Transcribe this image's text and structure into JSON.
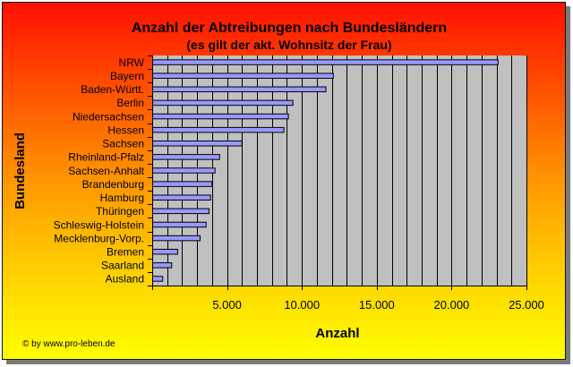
{
  "chart_data": {
    "type": "bar",
    "orientation": "horizontal",
    "title": "Anzahl der Abtreibungen nach Bundesländern",
    "subtitle": "(es gilt der akt. Wohnsitz der Frau)",
    "xlabel": "Anzahl",
    "ylabel": "Bundesland",
    "xlim": [
      0,
      25000
    ],
    "xticks": [
      5000,
      10000,
      15000,
      20000,
      25000
    ],
    "xtick_labels": [
      "5.000",
      "10.000",
      "15.000",
      "20.000",
      "25.000"
    ],
    "grid_step": 1000,
    "grid": true,
    "legend": false,
    "categories": [
      "NRW",
      "Bayern",
      "Baden-Württ.",
      "Berlin",
      "Niedersachsen",
      "Hessen",
      "Sachsen",
      "Rheinland-Pfalz",
      "Sachsen-Anhalt",
      "Brandenburg",
      "Hamburg",
      "Thüringen",
      "Schleswig-Holstein",
      "Mecklenburg-Vorp.",
      "Bremen",
      "Saarland",
      "Ausland"
    ],
    "values": [
      23100,
      12100,
      11600,
      9400,
      9100,
      8800,
      6000,
      4500,
      4200,
      4000,
      3900,
      3800,
      3600,
      3200,
      1700,
      1300,
      700
    ],
    "bar_color": "#9999ff",
    "plot_background": "#c0c0c0"
  },
  "credit": "© by www.pro-leben.de"
}
